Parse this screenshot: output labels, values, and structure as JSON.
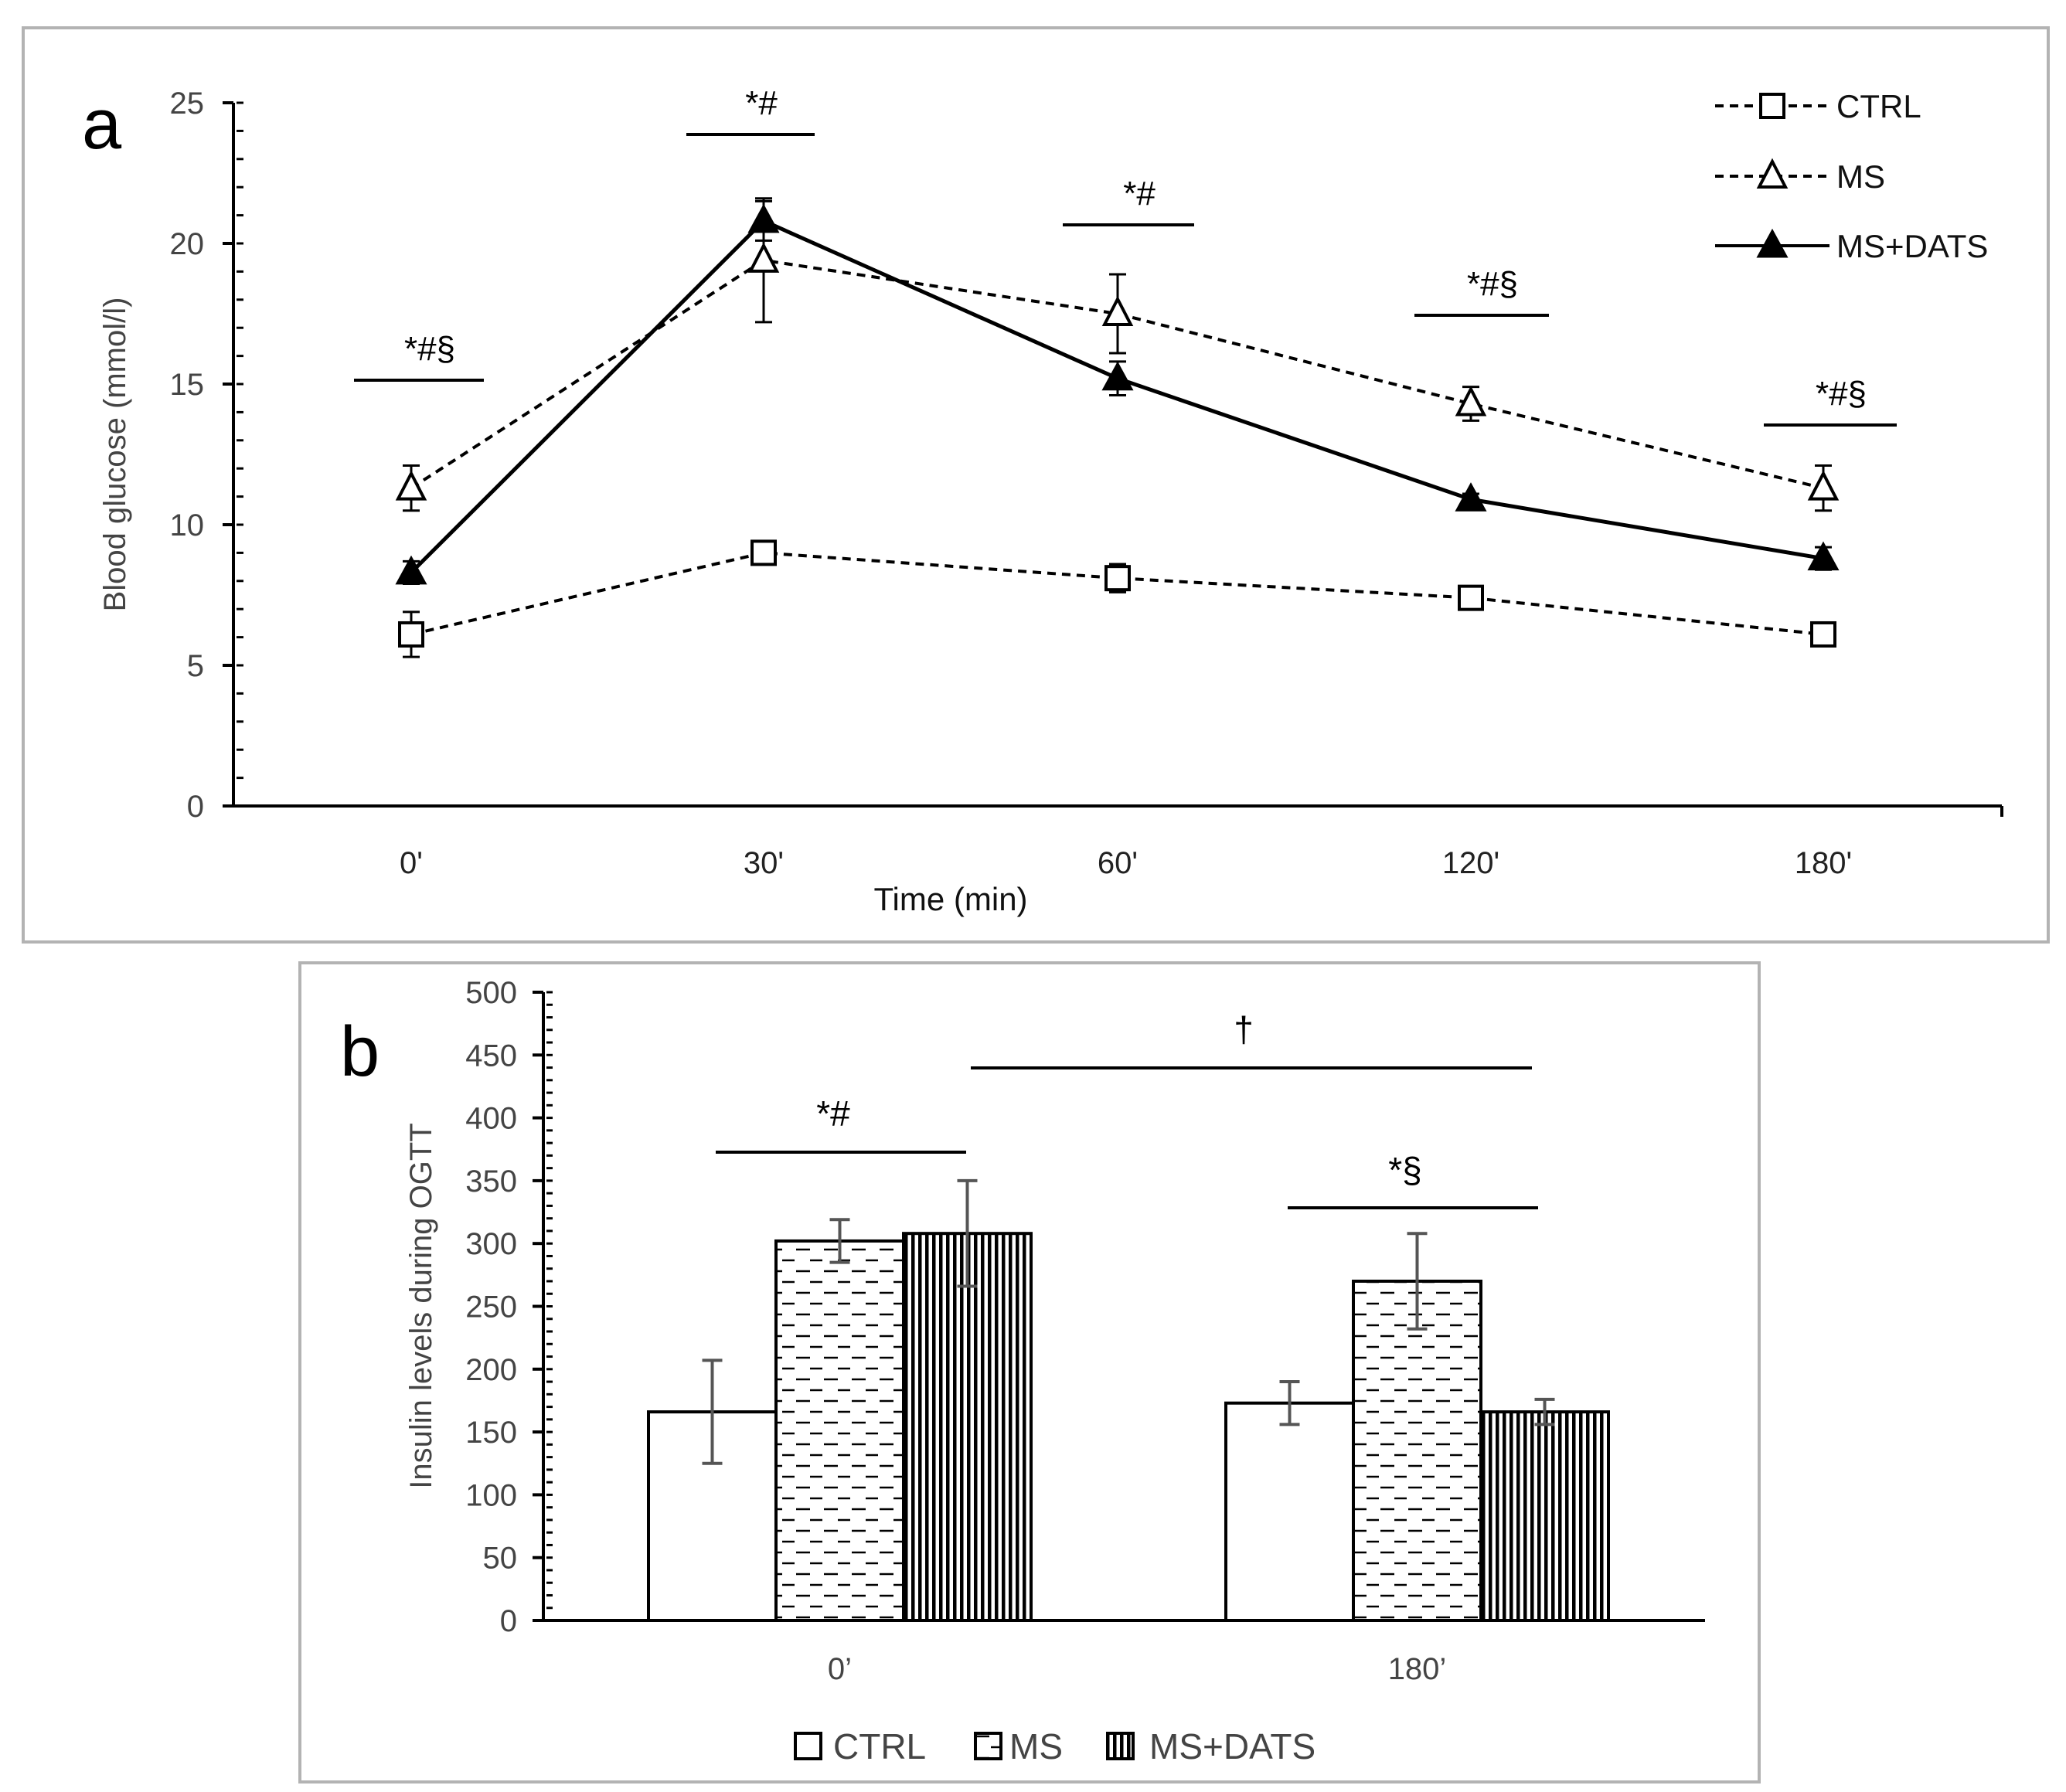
{
  "figure": {
    "panel_a": {
      "label": "a"
    },
    "panel_b": {
      "label": "b"
    }
  },
  "chart_data": [
    {
      "panel": "a",
      "type": "line",
      "title": "",
      "xlabel": "Time (min)",
      "ylabel": "Blood glucose (mmol/l)",
      "categories": [
        "0'",
        "30'",
        "60'",
        "120'",
        "180'"
      ],
      "ylim": [
        0,
        25
      ],
      "yticks": [
        0,
        5,
        10,
        15,
        20,
        25
      ],
      "series": [
        {
          "name": "CTRL",
          "marker": "square-open",
          "dash": true,
          "values": [
            6.1,
            9.0,
            8.1,
            7.4,
            6.1
          ],
          "errors": [
            0.8,
            0.4,
            0.5,
            0.4,
            0.4
          ]
        },
        {
          "name": "MS",
          "marker": "triangle-open",
          "dash": true,
          "values": [
            11.3,
            19.4,
            17.5,
            14.3,
            11.3
          ],
          "errors": [
            0.8,
            2.2,
            1.4,
            0.6,
            0.8
          ]
        },
        {
          "name": "MS+DATS",
          "marker": "triangle-filled",
          "dash": false,
          "values": [
            8.3,
            20.8,
            15.2,
            10.9,
            8.8
          ],
          "errors": [
            0.4,
            0.7,
            0.6,
            0.2,
            0.4
          ]
        }
      ],
      "significance": [
        {
          "label": "*#§",
          "at": "0'"
        },
        {
          "label": "*#",
          "at": "30'"
        },
        {
          "label": "*#",
          "at": "60'"
        },
        {
          "label": "*#§",
          "at": "120'"
        },
        {
          "label": "*#§",
          "at": "180'"
        }
      ],
      "legend_position": "top-right"
    },
    {
      "panel": "b",
      "type": "bar",
      "title": "",
      "xlabel": "",
      "ylabel": "Insulin levels during OGTT",
      "categories": [
        "0’",
        "180’"
      ],
      "ylim": [
        0,
        500
      ],
      "yticks": [
        0,
        50,
        100,
        150,
        200,
        250,
        300,
        350,
        400,
        450,
        500
      ],
      "series": [
        {
          "name": "CTRL",
          "pattern": "none",
          "values": [
            166,
            173
          ],
          "errors": [
            41,
            17
          ]
        },
        {
          "name": "MS",
          "pattern": "dashes",
          "values": [
            302,
            270
          ],
          "errors": [
            17,
            38
          ]
        },
        {
          "name": "MS+DATS",
          "pattern": "vertical-lines",
          "values": [
            308,
            166
          ],
          "errors": [
            42,
            10
          ]
        }
      ],
      "significance": [
        {
          "label": "*#",
          "at": "0’"
        },
        {
          "label": "*§",
          "at": "180’"
        },
        {
          "label": "†",
          "at": "0’-180’ MS+DATS"
        }
      ],
      "legend_position": "bottom"
    }
  ]
}
